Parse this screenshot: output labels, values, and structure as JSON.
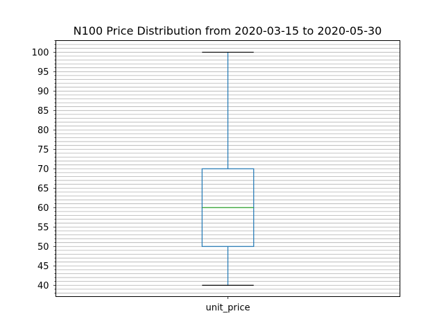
{
  "chart_data": {
    "type": "box",
    "title": "N100 Price Distribution from 2020-03-15 to 2020-05-30",
    "xlabel": "",
    "ylabel": "",
    "categories": [
      "unit_price"
    ],
    "boxes": [
      {
        "category": "unit_price",
        "whisker_low": 40,
        "q1": 50,
        "median": 60,
        "q3": 70,
        "whisker_high": 100
      }
    ],
    "y_ticks": [
      40,
      45,
      50,
      55,
      60,
      65,
      70,
      75,
      80,
      85,
      90,
      95,
      100
    ],
    "ylim": [
      37.1,
      103
    ],
    "minor_tick_step": 1,
    "grid": "horizontal, major and minor",
    "colors": {
      "box": "#1f77b4",
      "whisker": "#1f77b4",
      "cap": "#000000",
      "median": "#2ca02c",
      "grid": "#b0b0b0"
    }
  }
}
